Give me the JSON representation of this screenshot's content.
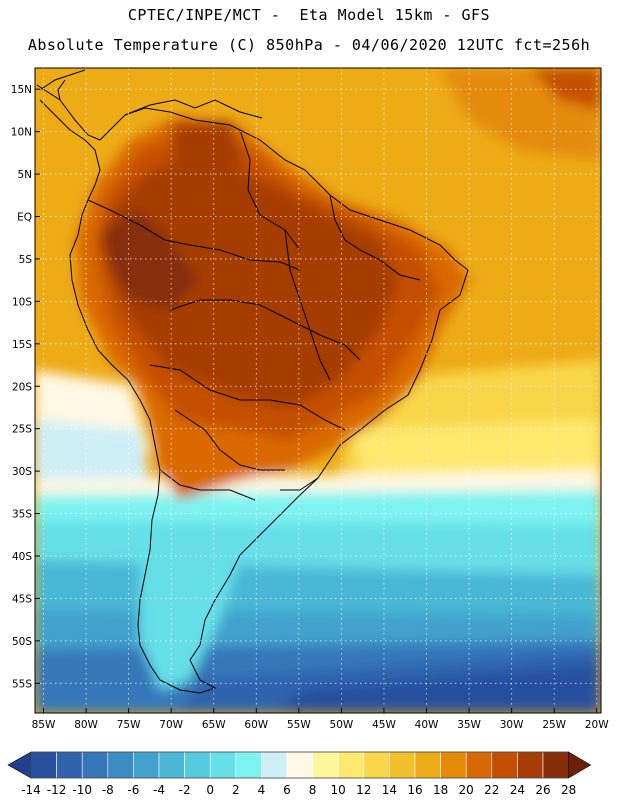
{
  "header": {
    "line1": "CPTEC/INPE/MCT -  Eta Model 15km - GFS",
    "line2": "Absolute Temperature (C) 850hPa - 04/06/2020 12UTC fct=256h"
  },
  "axes": {
    "lat_labels": [
      "15N",
      "10N",
      "5N",
      "EQ",
      "5S",
      "10S",
      "15S",
      "20S",
      "25S",
      "30S",
      "35S",
      "40S",
      "45S",
      "50S",
      "55S"
    ],
    "lat_values": [
      15,
      10,
      5,
      0,
      -5,
      -10,
      -15,
      -20,
      -25,
      -30,
      -35,
      -40,
      -45,
      -50,
      -55
    ],
    "lon_labels": [
      "85W",
      "80W",
      "75W",
      "70W",
      "65W",
      "60W",
      "55W",
      "50W",
      "45W",
      "40W",
      "35W",
      "30W",
      "25W",
      "20W"
    ],
    "lon_values": [
      -85,
      -80,
      -75,
      -70,
      -65,
      -60,
      -55,
      -50,
      -45,
      -40,
      -35,
      -30,
      -25,
      -20
    ],
    "lat_range": [
      17.5,
      -58.5
    ],
    "lon_range": [
      -86,
      -19.5
    ]
  },
  "legend": {
    "labels": [
      "-14",
      "-12",
      "-10",
      "-8",
      "-6",
      "-4",
      "-2",
      "0",
      "2",
      "4",
      "6",
      "8",
      "10",
      "12",
      "14",
      "16",
      "18",
      "20",
      "22",
      "24",
      "26",
      "28"
    ],
    "colors": [
      "#1f3f8f",
      "#27509f",
      "#2f63ad",
      "#3677b9",
      "#3c8cc4",
      "#42a1cd",
      "#4ab7d6",
      "#55cbdf",
      "#66dfe8",
      "#7df3f1",
      "#cfeff7",
      "#fff8e4",
      "#fff59a",
      "#fde96e",
      "#f9d64a",
      "#f2c02c",
      "#edab16",
      "#e48a09",
      "#d96904",
      "#c44f04",
      "#a63c06",
      "#862d08",
      "#6d1f0a"
    ]
  }
}
